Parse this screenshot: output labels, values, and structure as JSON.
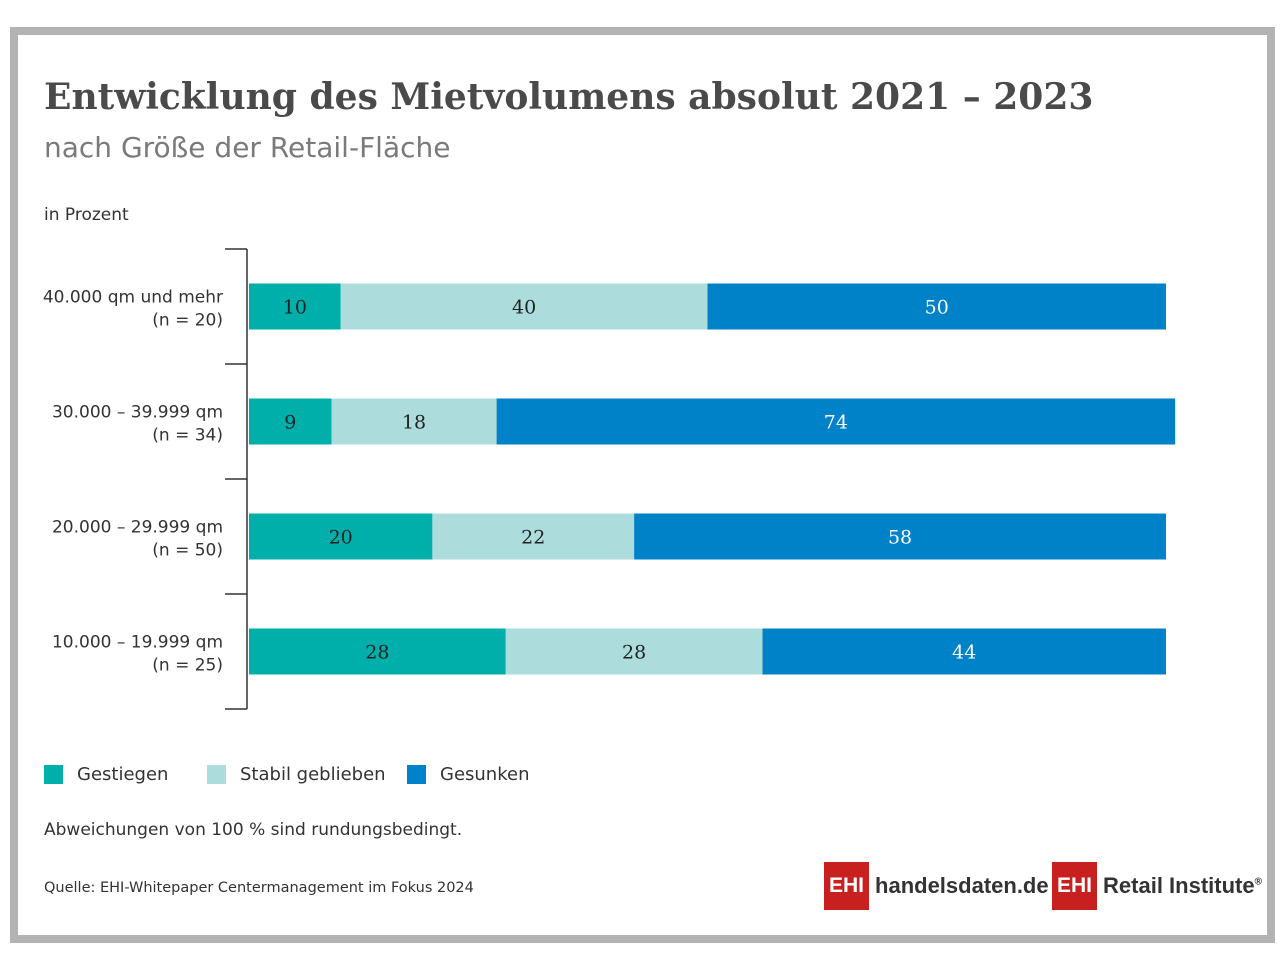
{
  "header": {
    "title": "Entwicklung des Mietvolumens absolut 2021 – 2023",
    "subtitle": "nach Größe der Retail-Fläche",
    "unit": "in Prozent"
  },
  "chart_data": {
    "type": "bar",
    "orientation": "horizontal",
    "stacked": true,
    "title": "Entwicklung des Mietvolumens absolut 2021 – 2023",
    "subtitle": "nach Größe der Retail-Fläche",
    "ylabel": "in Prozent",
    "categories": [
      [
        "40.000 qm und mehr",
        "(n = 20)"
      ],
      [
        "30.000 – 39.999 qm",
        "(n = 34)"
      ],
      [
        "20.000 – 29.999 qm",
        "(n = 50)"
      ],
      [
        "10.000 – 19.999 qm",
        "(n = 25)"
      ]
    ],
    "series": [
      {
        "name": "Gestiegen",
        "color": "#00aeaa",
        "values": [
          10,
          9,
          20,
          28
        ]
      },
      {
        "name": "Stabil geblieben",
        "color": "#acdcdc",
        "values": [
          40,
          18,
          22,
          28
        ]
      },
      {
        "name": "Gesunken",
        "color": "#0082c8",
        "values": [
          50,
          74,
          58,
          44
        ]
      }
    ],
    "xlim": [
      0,
      100
    ],
    "legend": "bottom-left",
    "grid": false
  },
  "footnote": "Abweichungen von 100 % sind rundungsbedingt.",
  "source": "Quelle: EHI-Whitepaper Centermanagement im Fokus 2024",
  "logos": {
    "handelsdaten_box": "EHI",
    "handelsdaten_text": "handelsdaten.de",
    "retail_box": "EHI",
    "retail_text": "Retail Institute",
    "retail_mark": "®"
  }
}
